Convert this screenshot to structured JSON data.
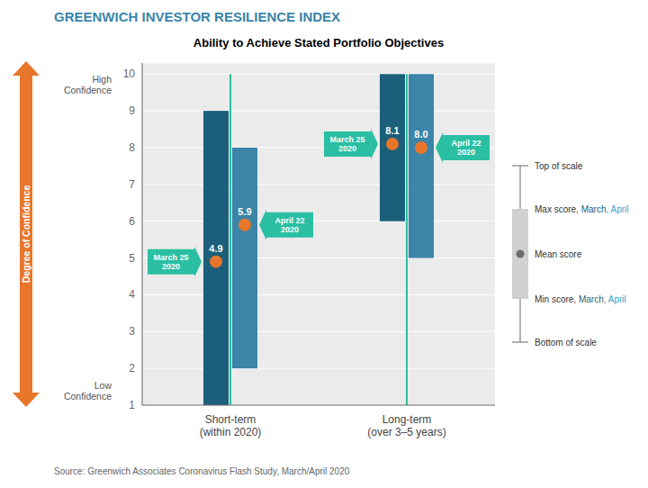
{
  "chart_data": {
    "type": "range_bar",
    "title": "GREENWICH INVESTOR RESILIENCE INDEX",
    "title_color": "#3a85a8",
    "subtitle": "Ability to Achieve Stated Portfolio Objectives",
    "source": "Source: Greenwich Associates Coronavirus Flash Study, March/April 2020",
    "source_color": "#666666",
    "categories": [
      "Short-term\n(within 2020)",
      "Long-term\n(over 3–5 years)"
    ],
    "series": [
      {
        "color": "#1c5f7a",
        "label": "March 25\n2020",
        "max": [
          9,
          10
        ],
        "min": [
          1,
          6
        ],
        "mean": [
          4.9,
          8.1
        ],
        "mean_labels": [
          "4.9",
          "8.1"
        ]
      },
      {
        "color": "#3a85a8",
        "label": "April 22\n2020",
        "max": [
          8,
          10
        ],
        "min": [
          2,
          5
        ],
        "mean": [
          5.9,
          8.0
        ],
        "mean_labels": [
          "5.9",
          "8.0"
        ]
      }
    ],
    "mean_color": "#e8762b",
    "label_color": "#2abfa3",
    "scale_line": {
      "range": [
        1,
        10
      ],
      "color": "#2abfa3"
    },
    "ylim": [
      1,
      10.3
    ],
    "yticks": [
      1,
      2,
      3,
      4,
      5,
      6,
      7,
      8,
      9,
      10
    ],
    "grid": true,
    "plot_background": "#ebebeb",
    "y_annotations": {
      "top": "High\nConfidence",
      "bottom": "Low\nConfidence",
      "color": "#555555"
    },
    "y_arrow": {
      "text": "Degree of Confidence",
      "color": "#e8762b"
    },
    "legend": "right",
    "legend_icon": {
      "line": "#999999",
      "box": "#d0d0d0",
      "dot": "#6e6e6e"
    },
    "legend_rows": [
      [
        {
          "text": "Top of scale",
          "color": "#333333"
        }
      ],
      [
        {
          "text": "Max score, ",
          "color": "#333333"
        },
        {
          "text": "March",
          "color": "#1c5f7a"
        },
        {
          "text": ", April",
          "color": "#3a9ec7"
        }
      ],
      [
        {
          "text": "Mean score",
          "color": "#333333"
        }
      ],
      [
        {
          "text": "Min score, ",
          "color": "#333333"
        },
        {
          "text": "March",
          "color": "#1c5f7a"
        },
        {
          "text": ", April",
          "color": "#3a9ec7"
        }
      ],
      [
        {
          "text": "Bottom of scale",
          "color": "#333333"
        }
      ]
    ]
  }
}
